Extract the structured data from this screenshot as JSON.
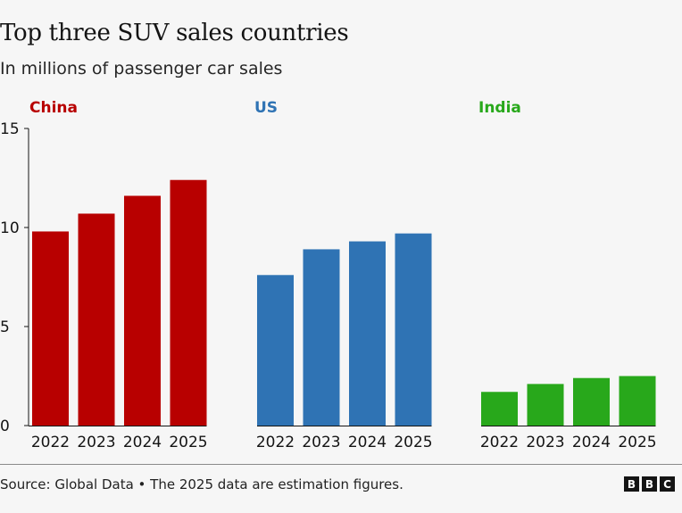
{
  "title": "Top three SUV sales countries",
  "subtitle": "In millions of passenger car sales",
  "source": "Source: Global Data • The 2025 data are estimation figures.",
  "logo_letters": [
    "B",
    "B",
    "C"
  ],
  "chart_data": {
    "type": "bar",
    "ylim": [
      0,
      15
    ],
    "yticks": [
      "0",
      "5",
      "10",
      "15"
    ],
    "categories": [
      "2022",
      "2023",
      "2024",
      "2025"
    ],
    "series": [
      {
        "name": "China",
        "color": "#b80000",
        "values": [
          9.8,
          10.7,
          11.6,
          12.4
        ]
      },
      {
        "name": "US",
        "color": "#2f73b4",
        "values": [
          7.6,
          8.9,
          9.3,
          9.7
        ]
      },
      {
        "name": "India",
        "color": "#28a81b",
        "values": [
          1.7,
          2.1,
          2.4,
          2.5
        ]
      }
    ]
  }
}
